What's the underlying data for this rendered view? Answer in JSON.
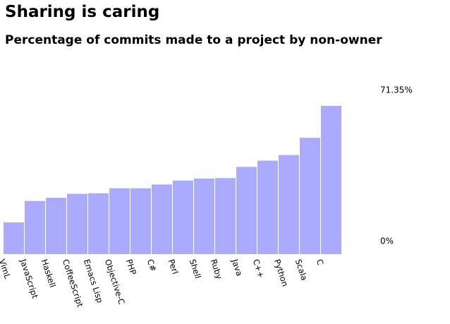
{
  "colors": {
    "bar": "#aaaaff",
    "background": "#ffffff",
    "text": "#000000"
  },
  "chart_data": {
    "type": "bar",
    "title": "Sharing is caring",
    "subtitle": "Percentage of commits made to a project by non-owner",
    "categories": [
      "VimL",
      "JavaScript",
      "Haskell",
      "CoffeeScript",
      "Emacs Lisp",
      "Objective-C",
      "PHP",
      "C#",
      "Perl",
      "Shell",
      "Ruby",
      "Java",
      "C++",
      "Python",
      "Scala",
      "C"
    ],
    "values": [
      15.3,
      25.6,
      27.1,
      29.0,
      29.3,
      31.7,
      31.7,
      33.5,
      35.4,
      36.4,
      36.6,
      42.0,
      45.0,
      47.7,
      56.0,
      71.35
    ],
    "ylim": [
      0,
      71.35
    ],
    "y_tick_labels": [
      "0%",
      "71.35%"
    ],
    "grid": false,
    "legend": "none"
  }
}
